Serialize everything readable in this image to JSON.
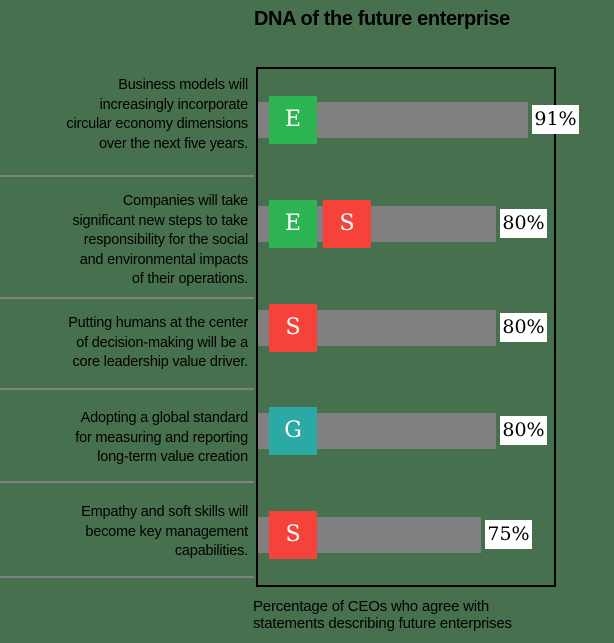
{
  "title": "DNA of the future enterprise",
  "caption": {
    "line1": "Percentage of CEOs who agree with",
    "line2": "statements describing future enterprises"
  },
  "colors": {
    "background": "#47714E",
    "bar": "#808080",
    "divider": "#808080",
    "frame_border": "#000000",
    "text": "#000000",
    "value_box_bg": "#FFFFFF"
  },
  "chart_data": {
    "type": "bar",
    "orientation": "horizontal",
    "title": "DNA of the future enterprise",
    "caption": "Percentage of CEOs who agree with statements describing future enterprises",
    "xlim": [
      0,
      100
    ],
    "bar_color": "#808080",
    "esg_colors": {
      "E": "#2CB453",
      "S": "#F5423B",
      "G": "#2BA9A4"
    },
    "categories": [
      "Business models will increasingly incorporate circular economy dimensions over the next five years.",
      "Companies will take significant new steps to take responsibility for the social and environmental impacts of their operations.",
      "Putting humans at the center of decision-making will be a core leadership value driver.",
      "Adopting a global standard for measuring and reporting long-term value creation",
      "Empathy and soft skills will become key management capabilities."
    ],
    "values": [
      91,
      80,
      80,
      80,
      75
    ],
    "rows": [
      {
        "lines": [
          "Business models will",
          "increasingly incorporate",
          "circular economy dimensions",
          "over the next five years."
        ],
        "badges": [
          "E"
        ],
        "value": 91,
        "value_label": "91%"
      },
      {
        "lines": [
          "Companies will take",
          "significant new steps to take",
          "responsibility for the social",
          "and environmental impacts",
          "of their operations."
        ],
        "badges": [
          "E",
          "S"
        ],
        "value": 80,
        "value_label": "80%"
      },
      {
        "lines": [
          "Putting humans at the center",
          "of decision-making will be a",
          "core leadership value driver."
        ],
        "badges": [
          "S"
        ],
        "value": 80,
        "value_label": "80%"
      },
      {
        "lines": [
          "Adopting a global standard",
          "for measuring and reporting",
          "long-term value creation"
        ],
        "badges": [
          "G"
        ],
        "value": 80,
        "value_label": "80%"
      },
      {
        "lines": [
          "Empathy and soft skills will",
          "become key management",
          "capabilities."
        ],
        "badges": [
          "S"
        ],
        "value": 75,
        "value_label": "75%"
      }
    ]
  }
}
